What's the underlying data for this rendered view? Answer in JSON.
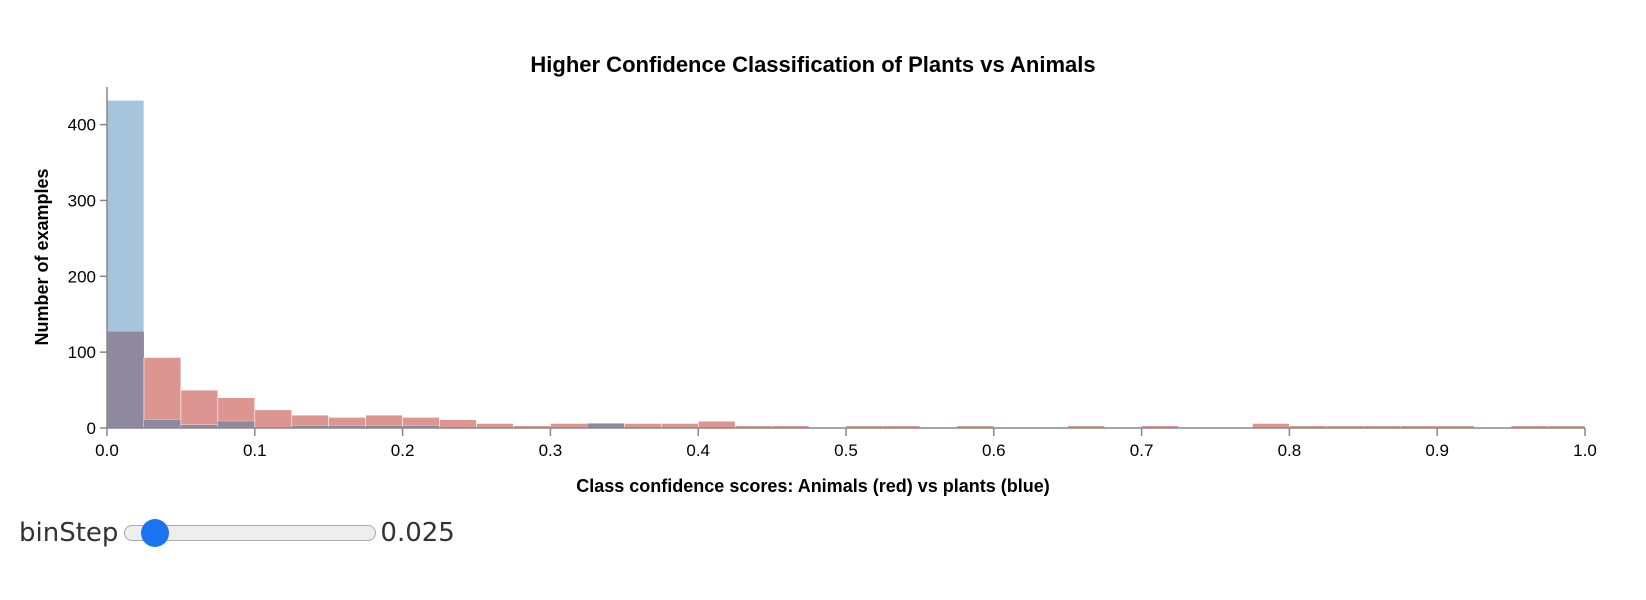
{
  "chart_data": {
    "type": "bar",
    "title": "Higher Confidence Classification of Plants vs Animals",
    "xlabel": "Class confidence scores: Animals (red) vs plants (blue)",
    "ylabel": "Number of examples",
    "xlim": [
      0,
      1
    ],
    "ylim": [
      0,
      450
    ],
    "x_ticks": [
      "0.0",
      "0.1",
      "0.2",
      "0.3",
      "0.4",
      "0.5",
      "0.6",
      "0.7",
      "0.8",
      "0.9",
      "1.0"
    ],
    "y_ticks": [
      "0",
      "100",
      "200",
      "300",
      "400"
    ],
    "grid": false,
    "bin_width": 0.025,
    "bin_starts": [
      0,
      0.025,
      0.05,
      0.075,
      0.1,
      0.125,
      0.15,
      0.175,
      0.2,
      0.225,
      0.25,
      0.275,
      0.3,
      0.325,
      0.35,
      0.375,
      0.4,
      0.425,
      0.45,
      0.475,
      0.5,
      0.525,
      0.55,
      0.575,
      0.6,
      0.625,
      0.65,
      0.675,
      0.7,
      0.725,
      0.75,
      0.775,
      0.8,
      0.825,
      0.85,
      0.875,
      0.9,
      0.925,
      0.95,
      0.975
    ],
    "series": [
      {
        "color": "#dc9591",
        "values": [
          127,
          93,
          50,
          40,
          24,
          17,
          14,
          17,
          14,
          11,
          6,
          3,
          6,
          6,
          6,
          6,
          9,
          3,
          3,
          0,
          3,
          3,
          0,
          3,
          0,
          0,
          3,
          0,
          3,
          0,
          0,
          6,
          3,
          3,
          3,
          3,
          3,
          0,
          3,
          3
        ]
      },
      {
        "color": "#a6c4dc",
        "values": [
          432,
          11,
          4,
          9,
          0,
          3,
          3,
          3,
          3,
          0,
          0,
          0,
          0,
          6,
          0,
          0,
          0,
          0,
          0,
          0,
          0,
          0,
          0,
          0,
          0,
          0,
          0,
          0,
          0,
          0,
          0,
          0,
          0,
          0,
          0,
          0,
          0,
          0,
          0,
          0
        ]
      }
    ],
    "overlap_color": "#8f89a0"
  },
  "controls": {
    "bin_step_label": "binStep",
    "bin_step_value": "0.025",
    "bin_step_slider_fraction": 0.08
  }
}
